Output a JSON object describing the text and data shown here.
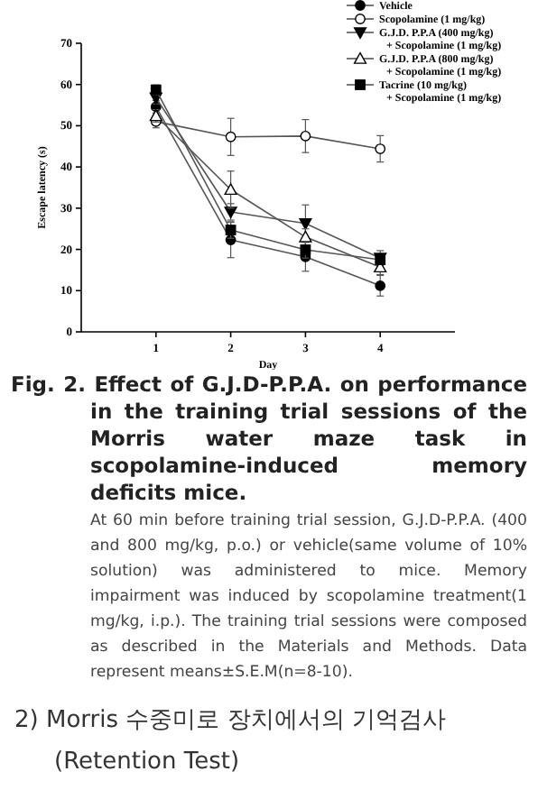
{
  "chart_data": {
    "type": "line",
    "title": "Fig. 2. Effect of G.J.D-P.P.A. on performance in the training trial sessions of the Morris water maze task in scopolamine-induced memory deficits mice.",
    "xlabel": "Day",
    "ylabel": "Escape latency (s)",
    "x": [
      1,
      2,
      3,
      4
    ],
    "xlim": [
      0,
      5
    ],
    "xticks": [
      1,
      2,
      3,
      4
    ],
    "ylim": [
      0,
      70
    ],
    "yticks": [
      0,
      10,
      20,
      30,
      40,
      50,
      60,
      70
    ],
    "grid": false,
    "legend": "top right",
    "line_style": "solid",
    "series": [
      {
        "name": "Vehicle",
        "color": "#000000",
        "marker": "circle",
        "values": [
          54.6,
          22.3,
          18.2,
          11.2
        ],
        "errors": [
          1.5,
          4.3,
          3.5,
          2.5
        ]
      },
      {
        "name": "Scopolamine (1 mg/kg)",
        "color": "#ffffff",
        "marker": "circle",
        "values": [
          51,
          47.3,
          47.5,
          44.4
        ],
        "errors": [
          1.5,
          4.5,
          4,
          3.2
        ]
      },
      {
        "name": "G.J.D. P.P.A (400 mg/kg)\n+ Scopolamine (1 mg/kg)",
        "color": "#000000",
        "marker": "triangle-down",
        "values": [
          56.8,
          29.1,
          26.3,
          17.9
        ],
        "errors": [
          1.5,
          2,
          4.5,
          1.8
        ]
      },
      {
        "name": "G.J.D. P.P.A (800 mg/kg)\n+ Scopolamine (1 mg/kg)",
        "color": "#ffffff",
        "marker": "triangle",
        "values": [
          52.4,
          34.5,
          23,
          15.7
        ],
        "errors": [
          1.5,
          4.5,
          2,
          1.8
        ]
      },
      {
        "name": "Tacrine (10 mg/kg)\n+ Scopolamine (1 mg/kg)",
        "color": "#000000",
        "marker": "square",
        "values": [
          58.7,
          24.7,
          19.9,
          17.5
        ],
        "errors": [
          1.2,
          2,
          2,
          null
        ]
      }
    ],
    "annotations": [
      "At 60 min before training trial session, G.J.D-P.P.A. (400 and 800 mg/kg, p.o.) or vehicle(same volume of 10% solution) was administered to mice. Memory impairment was induced by scopolamine treatment(1 mg/kg, i.p.). The training trial sessions were composed as described in the Materials and Methods. Data represent means±S.E.M(n=8-10).",
      "2) Morris 수중미로 장치에서의 기억검사 (Retention Test)"
    ]
  }
}
